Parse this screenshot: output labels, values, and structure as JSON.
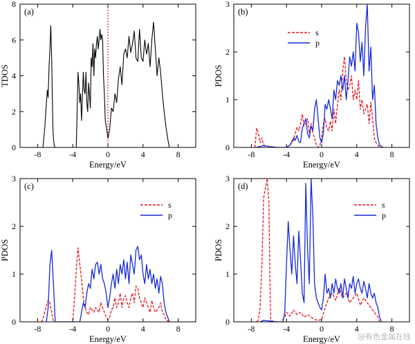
{
  "watermark": "@有色金属在线",
  "colors": {
    "tdos": "#000000",
    "s": "#e8141b",
    "p": "#1428d8",
    "fermi": "#c00000"
  },
  "chart_data": [
    {
      "id": "a",
      "tag": "(a)",
      "type": "line",
      "xlabel": "Energy/eV",
      "ylabel": "TDOS",
      "xlim": [
        -10,
        10
      ],
      "ylim": [
        0,
        8
      ],
      "xticks": [
        -8,
        -4,
        0,
        4,
        8
      ],
      "yticks": [
        0,
        2,
        4,
        6,
        8
      ],
      "fermi_line": 0,
      "legend": null,
      "series": [
        {
          "name": "TDOS",
          "style": "black-solid",
          "x": [
            -7.4,
            -7.2,
            -7.0,
            -6.9,
            -6.8,
            -6.7,
            -6.6,
            -6.5,
            -6.4,
            -6.3,
            -6.25,
            -6.2,
            -6.1,
            -6.0,
            -3.6,
            -3.5,
            -3.4,
            -3.3,
            -3.2,
            -3.1,
            -3.0,
            -2.9,
            -2.8,
            -2.7,
            -2.6,
            -2.5,
            -2.4,
            -2.3,
            -2.2,
            -2.1,
            -2.0,
            -1.9,
            -1.8,
            -1.7,
            -1.6,
            -1.5,
            -1.4,
            -1.3,
            -1.2,
            -1.1,
            -1.0,
            -0.9,
            -0.8,
            -0.7,
            -0.6,
            -0.5,
            -0.4,
            -0.3,
            -0.2,
            -0.1,
            0.0,
            0.2,
            0.4,
            0.6,
            0.8,
            1.0,
            1.2,
            1.4,
            1.6,
            1.8,
            2.0,
            2.2,
            2.4,
            2.6,
            2.8,
            3.0,
            3.2,
            3.4,
            3.6,
            3.8,
            4.0,
            4.2,
            4.4,
            4.6,
            4.8,
            5.0,
            5.2,
            5.4,
            5.6,
            5.8,
            6.0,
            6.2,
            6.4,
            6.6,
            6.8,
            7.0
          ],
          "y": [
            0,
            1.0,
            2.5,
            3.2,
            2.8,
            4.5,
            5.5,
            6.8,
            5.0,
            2.0,
            1.0,
            0.5,
            0.1,
            0,
            0,
            2.0,
            4.2,
            3.5,
            2.5,
            3.0,
            1.5,
            2.8,
            4.2,
            3.2,
            3.0,
            4.2,
            2.5,
            2.0,
            3.6,
            3.0,
            2.2,
            5.0,
            4.5,
            5.8,
            4.0,
            5.5,
            5.0,
            5.8,
            6.2,
            5.5,
            6.0,
            6.6,
            6.0,
            6.3,
            6.0,
            4.0,
            3.0,
            1.5,
            1.2,
            0.9,
            0.5,
            1.0,
            2.2,
            2.0,
            3.0,
            2.5,
            3.8,
            4.5,
            3.5,
            5.2,
            5.5,
            5.0,
            6.2,
            5.3,
            5.8,
            6.5,
            5.0,
            4.8,
            6.6,
            5.0,
            4.8,
            6.0,
            5.2,
            5.8,
            4.5,
            6.0,
            7.0,
            5.5,
            4.0,
            5.0,
            4.2,
            3.0,
            2.0,
            1.2,
            0.5,
            0
          ]
        }
      ]
    },
    {
      "id": "b",
      "tag": "(b)",
      "type": "line",
      "xlabel": "Energy/eV",
      "ylabel": "PDOS",
      "xlim": [
        -10,
        10
      ],
      "ylim": [
        0,
        3
      ],
      "xticks": [
        -8,
        -4,
        0,
        4,
        8
      ],
      "yticks": [
        0,
        1,
        2,
        3
      ],
      "fermi_line": null,
      "legend": "upper-left",
      "series": [
        {
          "name": "s",
          "style": "red-dashed",
          "x": [
            -7.6,
            -7.4,
            -7.2,
            -7.0,
            -6.8,
            -6.6,
            -6.4,
            -4.0,
            -3.6,
            -3.2,
            -3.0,
            -2.8,
            -2.6,
            -2.4,
            -2.2,
            -2.0,
            -1.8,
            -1.6,
            -1.4,
            -1.2,
            -1.0,
            -0.8,
            -0.6,
            -0.4,
            -0.2,
            0.0,
            0.2,
            0.4,
            0.6,
            0.8,
            1.0,
            1.2,
            1.4,
            1.6,
            1.8,
            2.0,
            2.2,
            2.4,
            2.6,
            2.8,
            3.0,
            3.2,
            3.4,
            3.6,
            3.8,
            4.0,
            4.2,
            4.4,
            4.6,
            4.8,
            5.0,
            5.2,
            5.4,
            5.6,
            5.8,
            6.0,
            6.2,
            6.4,
            6.6
          ],
          "y": [
            0,
            0.4,
            0.3,
            0.1,
            0.2,
            0.05,
            0,
            0,
            0.05,
            0.15,
            0.3,
            0.42,
            0.35,
            0.5,
            0.7,
            0.45,
            0.5,
            0.6,
            0.3,
            0.5,
            0.3,
            0.2,
            0.05,
            0,
            0.05,
            0.2,
            0.5,
            0.6,
            0.4,
            0.35,
            0.55,
            0.35,
            0.8,
            0.5,
            0.9,
            1.2,
            1.0,
            1.6,
            1.9,
            1.4,
            1.2,
            1.3,
            1.5,
            1.0,
            1.2,
            1.0,
            1.4,
            0.8,
            1.0,
            0.7,
            0.8,
            0.9,
            0.5,
            0.95,
            0.6,
            0.2,
            0.1,
            0.05,
            0
          ]
        },
        {
          "name": "p",
          "style": "blue-solid",
          "x": [
            -7.5,
            -7.0,
            -6.5,
            -6.0,
            -5.0,
            -4.0,
            -3.6,
            -3.2,
            -3.0,
            -2.8,
            -2.6,
            -2.4,
            -2.2,
            -2.0,
            -1.8,
            -1.6,
            -1.4,
            -1.2,
            -1.0,
            -0.8,
            -0.6,
            -0.4,
            -0.2,
            0.0,
            0.2,
            0.4,
            0.6,
            0.8,
            1.0,
            1.2,
            1.4,
            1.6,
            1.8,
            2.0,
            2.2,
            2.4,
            2.6,
            2.8,
            3.0,
            3.2,
            3.4,
            3.6,
            3.8,
            4.0,
            4.2,
            4.4,
            4.6,
            4.8,
            5.0,
            5.2,
            5.4,
            5.6,
            5.8,
            6.0,
            6.2,
            6.4,
            6.6,
            7.0
          ],
          "y": [
            0,
            0.02,
            0.04,
            0.02,
            0,
            0,
            0.05,
            0.2,
            0.15,
            0.25,
            0.12,
            0.1,
            0.4,
            0.5,
            0.6,
            0.3,
            0.2,
            0.45,
            0.35,
            0.8,
            1.0,
            0.6,
            0.2,
            0.1,
            0.3,
            0.9,
            0.8,
            1.0,
            0.8,
            0.6,
            1.2,
            1.0,
            1.4,
            1.3,
            1.5,
            1.2,
            1.5,
            1.0,
            1.4,
            1.9,
            1.7,
            2.0,
            1.6,
            2.6,
            2.4,
            1.8,
            2.2,
            1.5,
            2.5,
            3.0,
            1.6,
            2.1,
            1.0,
            1.3,
            0.5,
            0.2,
            0.05,
            0
          ]
        }
      ]
    },
    {
      "id": "c",
      "tag": "(c)",
      "type": "line",
      "xlabel": "Energy/eV",
      "ylabel": "PDOS",
      "xlim": [
        -10,
        10
      ],
      "ylim": [
        0,
        3
      ],
      "xticks": [
        -8,
        -4,
        0,
        4,
        8
      ],
      "yticks": [
        0,
        1,
        2,
        3
      ],
      "fermi_line": null,
      "legend": "upper-right",
      "series": [
        {
          "name": "s",
          "style": "red-dashed",
          "x": [
            -7.6,
            -7.4,
            -7.2,
            -7.0,
            -6.8,
            -6.6,
            -6.4,
            -6.2,
            -4.0,
            -3.8,
            -3.6,
            -3.4,
            -3.2,
            -3.0,
            -2.8,
            -2.6,
            -2.4,
            -2.2,
            -2.0,
            -1.8,
            -1.6,
            -1.4,
            -1.2,
            -1.0,
            -0.8,
            -0.6,
            -0.4,
            -0.2,
            0.0,
            0.2,
            0.4,
            0.6,
            0.8,
            1.0,
            1.2,
            1.4,
            1.6,
            1.8,
            2.0,
            2.2,
            2.4,
            2.6,
            2.8,
            3.0,
            3.2,
            3.4,
            3.6,
            3.8,
            4.0,
            4.2,
            4.4,
            4.6,
            4.8,
            5.0,
            5.2,
            5.4,
            5.6,
            5.8,
            6.0,
            6.2,
            6.4,
            6.6,
            7.0
          ],
          "y": [
            0,
            0.05,
            0.2,
            0.35,
            0.45,
            0.4,
            0.2,
            0,
            0,
            0.5,
            1.1,
            1.55,
            1.2,
            0.9,
            0.5,
            0.3,
            0.2,
            0.15,
            0.3,
            0.25,
            0.2,
            0.3,
            0.25,
            0.2,
            0.4,
            0.3,
            0.2,
            0.1,
            0.05,
            0.1,
            0.25,
            0.3,
            0.5,
            0.3,
            0.4,
            0.6,
            0.3,
            0.5,
            0.55,
            0.4,
            0.3,
            0.5,
            0.6,
            0.4,
            0.75,
            0.7,
            0.5,
            0.4,
            0.3,
            0.5,
            0.4,
            0.3,
            0.2,
            0.45,
            0.3,
            0.2,
            0.25,
            0.3,
            0.4,
            0.2,
            0.15,
            0.05,
            0
          ]
        },
        {
          "name": "p",
          "style": "blue-solid",
          "x": [
            -7.0,
            -6.8,
            -6.6,
            -6.4,
            -6.2,
            -6.0,
            -3.2,
            -3.0,
            -2.8,
            -2.6,
            -2.4,
            -2.2,
            -2.0,
            -1.8,
            -1.6,
            -1.4,
            -1.2,
            -1.0,
            -0.8,
            -0.6,
            -0.4,
            -0.2,
            0.0,
            0.2,
            0.4,
            0.6,
            0.8,
            1.0,
            1.2,
            1.4,
            1.6,
            1.8,
            2.0,
            2.2,
            2.4,
            2.6,
            2.8,
            3.0,
            3.2,
            3.4,
            3.6,
            3.8,
            4.0,
            4.2,
            4.4,
            4.6,
            4.8,
            5.0,
            5.2,
            5.4,
            5.6,
            5.8,
            6.0,
            6.2,
            6.4,
            6.6,
            6.8,
            7.0
          ],
          "y": [
            0,
            0.3,
            1.2,
            1.5,
            0.8,
            0,
            0,
            0.2,
            0.4,
            0.3,
            0.6,
            0.8,
            0.7,
            1.1,
            0.9,
            1.2,
            1.25,
            1.0,
            1.2,
            0.9,
            0.8,
            0.6,
            0.3,
            0.5,
            0.8,
            1.0,
            0.7,
            1.1,
            0.8,
            1.2,
            1.0,
            1.3,
            0.9,
            1.25,
            0.8,
            1.4,
            1.2,
            1.0,
            1.5,
            1.58,
            1.3,
            1.4,
            1.0,
            0.8,
            1.2,
            0.9,
            1.1,
            0.8,
            1.0,
            0.7,
            0.9,
            0.6,
            0.95,
            0.8,
            0.4,
            0.2,
            0.1,
            0
          ]
        }
      ]
    },
    {
      "id": "d",
      "tag": "(d)",
      "type": "line",
      "xlabel": "Energy/eV",
      "ylabel": "PDOS",
      "xlim": [
        -10,
        10
      ],
      "ylim": [
        0,
        3
      ],
      "xticks": [
        -8,
        -4,
        0,
        4,
        8
      ],
      "yticks": [
        0,
        1,
        2,
        3
      ],
      "fermi_line": null,
      "legend": "upper-right",
      "series": [
        {
          "name": "s",
          "style": "red-dashed",
          "x": [
            -7.4,
            -7.2,
            -7.0,
            -6.8,
            -6.6,
            -6.4,
            -6.2,
            -6.0,
            -5.9,
            -5.8,
            -5.5,
            -5.0,
            -4.6,
            -4.4,
            -4.2,
            -4.0,
            -3.6,
            -3.2,
            -2.8,
            -2.4,
            -2.0,
            -1.6,
            -1.2,
            -0.8,
            -0.4,
            0.0,
            0.4,
            0.8,
            1.2,
            1.6,
            2.0,
            2.4,
            2.8,
            3.2,
            3.6,
            4.0,
            4.4,
            4.8,
            5.2,
            5.6,
            6.0,
            6.4,
            6.6
          ],
          "y": [
            0,
            0.05,
            0.3,
            1.2,
            2.6,
            2.8,
            3.0,
            2.5,
            1.0,
            0.05,
            0,
            0,
            0,
            0.05,
            0.1,
            0.2,
            0.12,
            0.25,
            0.15,
            0.2,
            0.1,
            0.15,
            0.1,
            0.05,
            0.03,
            0.05,
            0.3,
            0.5,
            0.6,
            0.45,
            0.7,
            0.5,
            0.6,
            0.4,
            0.5,
            0.6,
            0.35,
            0.5,
            0.4,
            0.3,
            0.2,
            0.1,
            0
          ]
        },
        {
          "name": "p",
          "style": "blue-solid",
          "x": [
            -7.0,
            -6.6,
            -6.0,
            -5.0,
            -4.4,
            -4.2,
            -4.0,
            -3.8,
            -3.6,
            -3.4,
            -3.2,
            -3.0,
            -2.8,
            -2.6,
            -2.4,
            -2.2,
            -2.0,
            -1.8,
            -1.6,
            -1.4,
            -1.2,
            -1.0,
            -0.8,
            -0.6,
            -0.4,
            -0.2,
            0.0,
            0.2,
            0.4,
            0.6,
            0.8,
            1.0,
            1.2,
            1.4,
            1.6,
            1.8,
            2.0,
            2.2,
            2.4,
            2.6,
            2.8,
            3.0,
            3.2,
            3.4,
            3.6,
            3.8,
            4.0,
            4.2,
            4.4,
            4.6,
            4.8,
            5.0,
            5.2,
            5.4,
            5.6,
            5.8,
            6.0,
            6.2,
            6.4,
            6.6,
            6.8
          ],
          "y": [
            0,
            0.03,
            0.02,
            0,
            0,
            0.2,
            1.2,
            2.1,
            1.5,
            1.0,
            1.8,
            1.2,
            0.8,
            1.9,
            1.3,
            0.6,
            0.4,
            2.9,
            1.5,
            0.8,
            3.0,
            2.2,
            0.8,
            0.5,
            0.4,
            0.3,
            0.25,
            0.5,
            1.0,
            0.6,
            0.7,
            0.5,
            0.8,
            0.6,
            0.9,
            0.7,
            0.6,
            0.8,
            0.5,
            0.9,
            0.7,
            0.5,
            0.8,
            0.7,
            0.95,
            0.6,
            0.8,
            0.9,
            0.7,
            0.6,
            0.85,
            0.7,
            0.5,
            0.8,
            0.6,
            0.5,
            0.6,
            0.4,
            0.3,
            0.1,
            0
          ]
        }
      ]
    }
  ]
}
